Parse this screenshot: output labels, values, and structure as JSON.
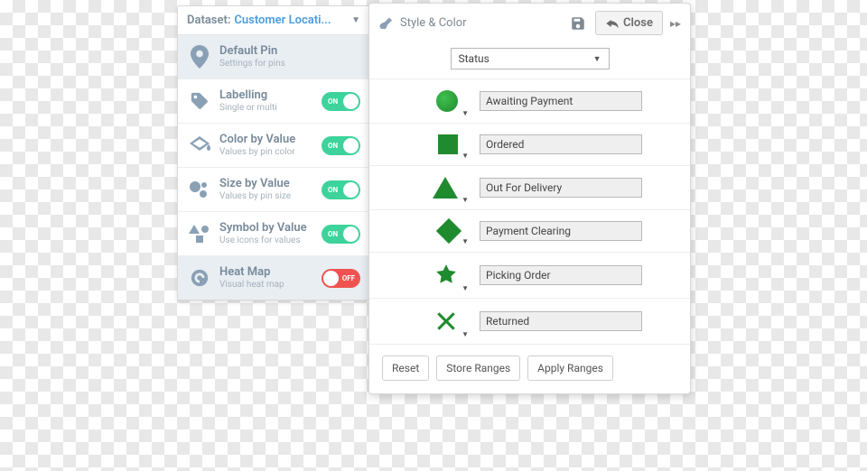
{
  "sidebar": {
    "dataset_label": "Dataset:",
    "dataset_name": "Customer Locati...",
    "rows": [
      {
        "title": "Default Pin",
        "sub": "Settings for pins",
        "toggle": null,
        "active": true
      },
      {
        "title": "Labelling",
        "sub": "Single or multi",
        "toggle": {
          "on": true,
          "text": "ON"
        },
        "active": false
      },
      {
        "title": "Color by Value",
        "sub": "Values by pin color",
        "toggle": {
          "on": true,
          "text": "ON"
        },
        "active": false
      },
      {
        "title": "Size by Value",
        "sub": "Values by pin size",
        "toggle": {
          "on": true,
          "text": "ON"
        },
        "active": false
      },
      {
        "title": "Symbol by Value",
        "sub": "Use icons for values",
        "toggle": {
          "on": true,
          "text": "ON"
        },
        "active": false
      },
      {
        "title": "Heat Map",
        "sub": "Visual heat map",
        "toggle": {
          "on": false,
          "text": "OFF"
        },
        "active": true
      }
    ]
  },
  "popover": {
    "title": "Style & Color",
    "close_label": "Close",
    "dropdown_value": "Status",
    "primary_color": "#1f8b2e",
    "items": [
      {
        "shape": "circle",
        "label": "Awaiting Payment"
      },
      {
        "shape": "square",
        "label": "Ordered"
      },
      {
        "shape": "triangle",
        "label": "Out For Delivery"
      },
      {
        "shape": "diamond",
        "label": "Payment Clearing"
      },
      {
        "shape": "star",
        "label": "Picking Order"
      },
      {
        "shape": "x",
        "label": "Returned"
      }
    ],
    "buttons": {
      "reset": "Reset",
      "store": "Store Ranges",
      "apply": "Apply Ranges"
    }
  },
  "colors": {
    "toggle_on": "#3dd39b",
    "toggle_off": "#ef5350",
    "accent": "#4a9de0",
    "icon_gray": "#8aa0b5"
  }
}
